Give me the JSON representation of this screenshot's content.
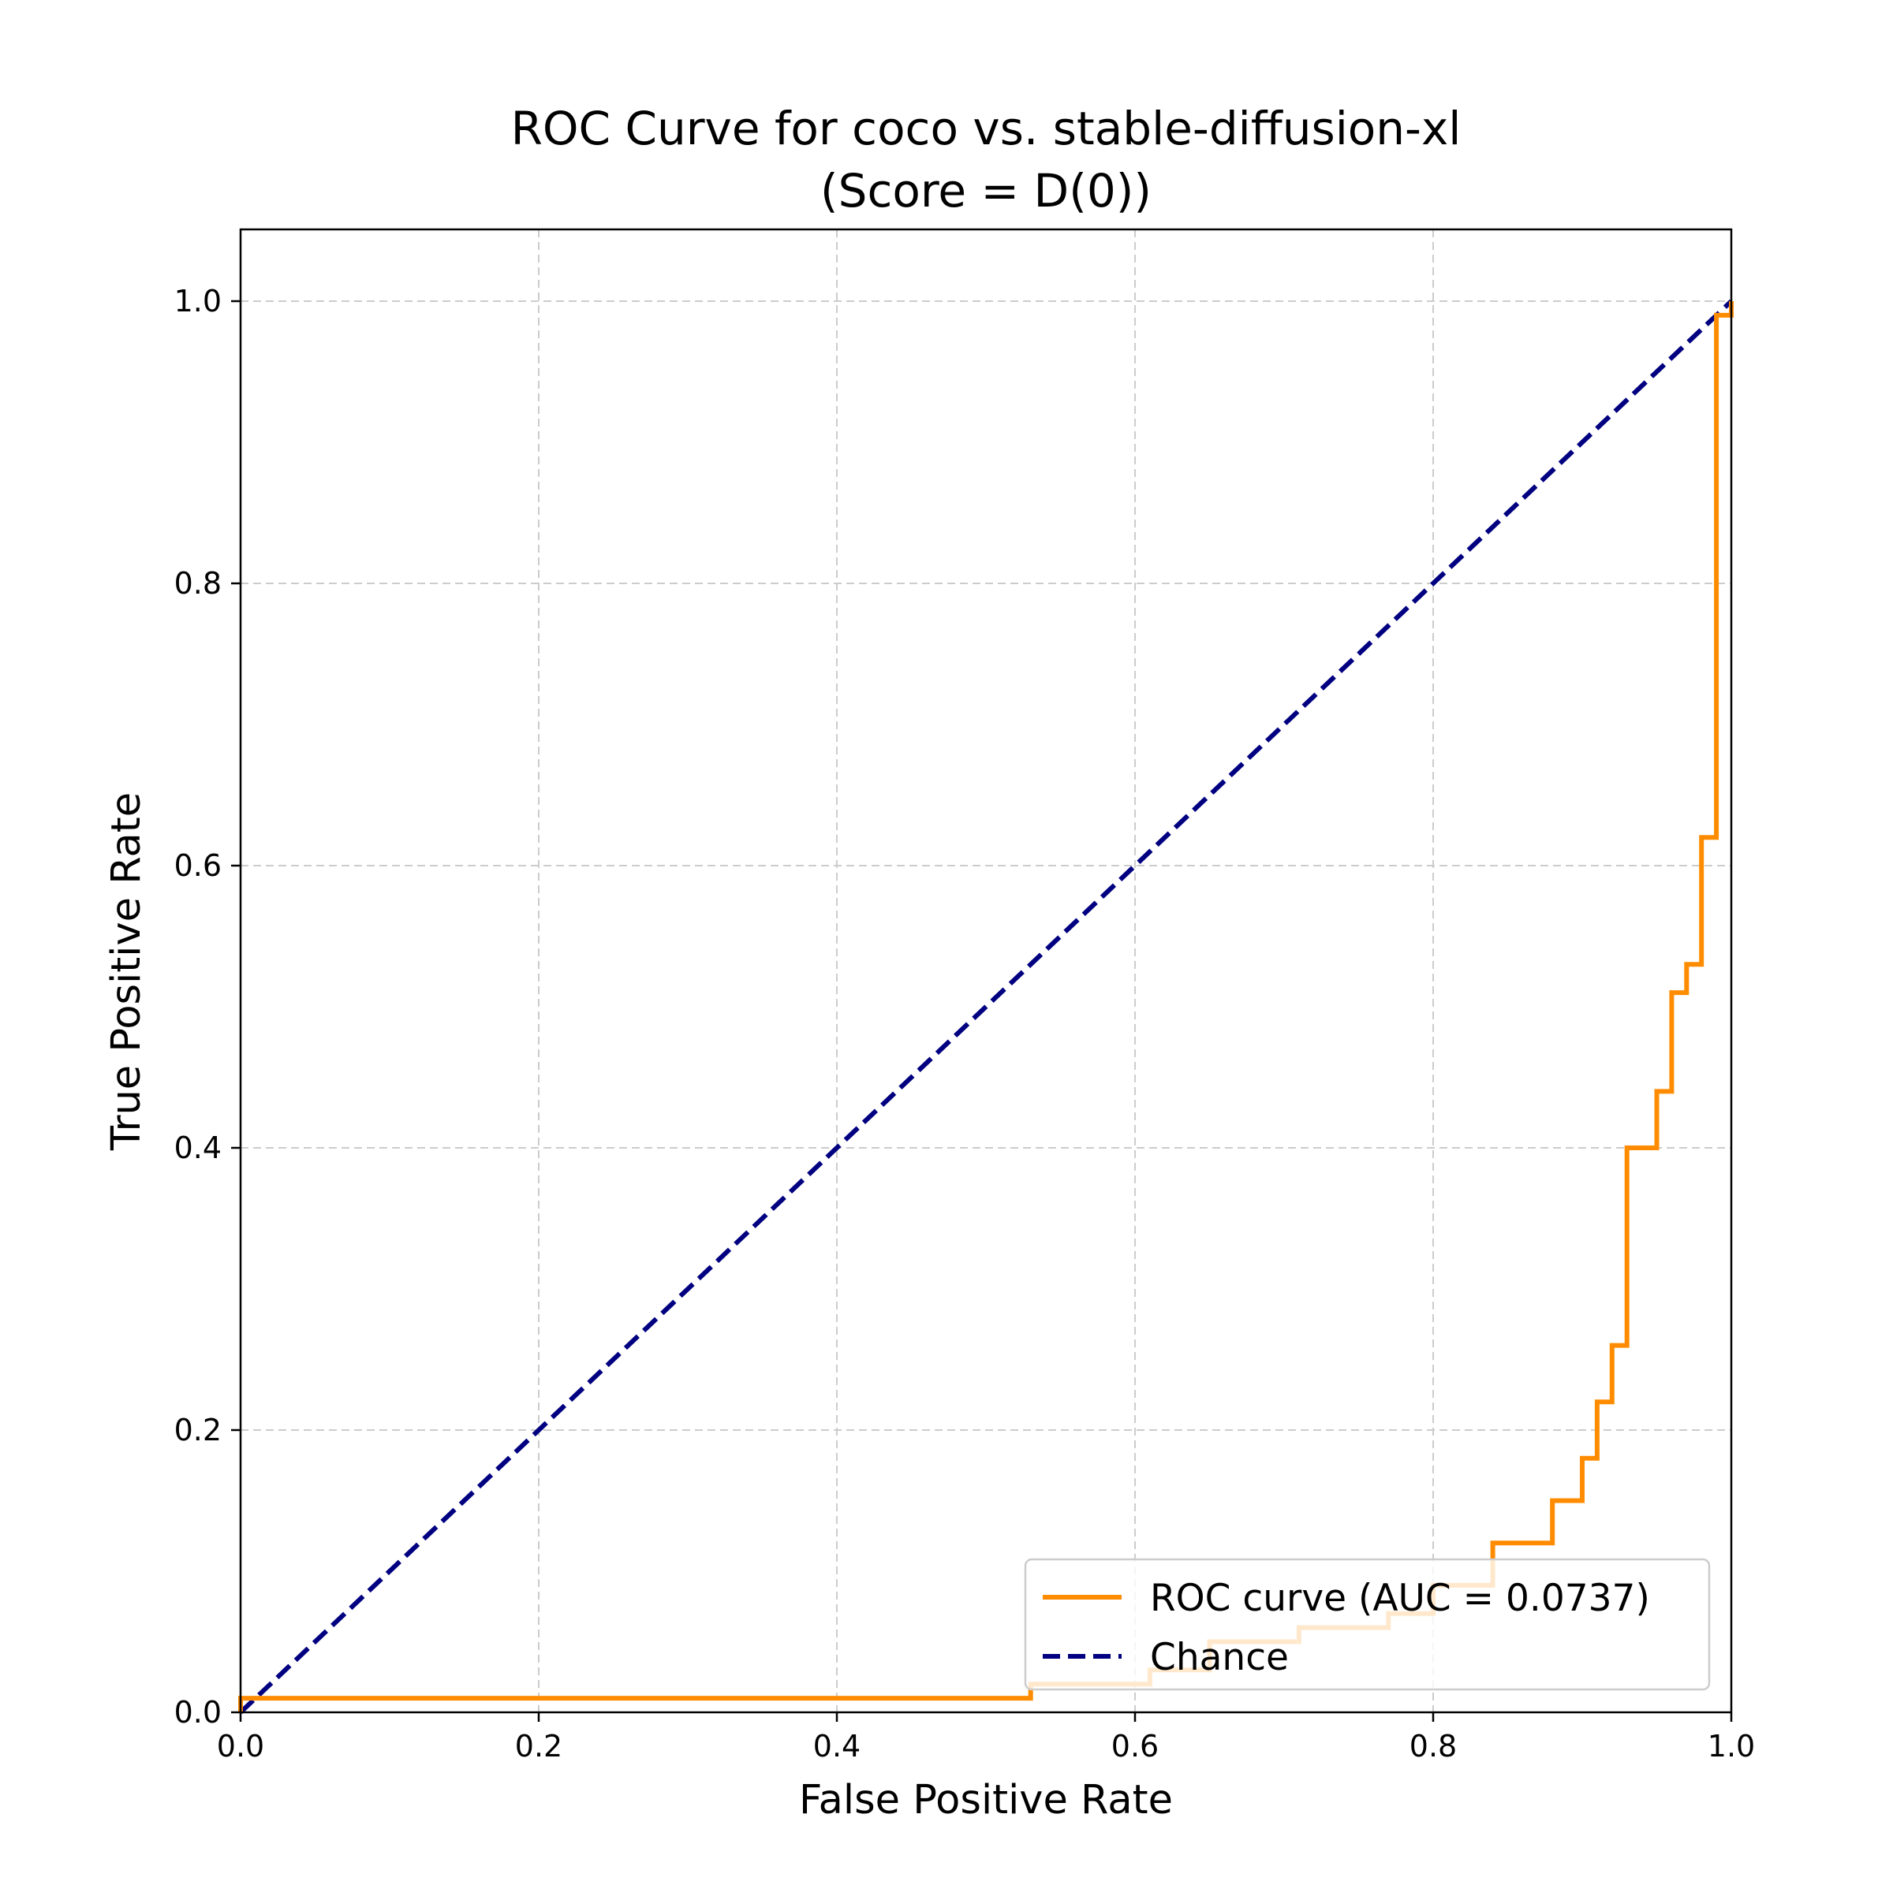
{
  "chart_data": {
    "type": "line",
    "title": [
      "ROC Curve for coco vs. stable-diffusion-xl",
      "(Score = D(0))"
    ],
    "xlabel": "False Positive Rate",
    "ylabel": "True Positive Rate",
    "xlim": [
      0.0,
      1.0
    ],
    "ylim": [
      0.0,
      1.0
    ],
    "xticks": [
      "0.0",
      "0.2",
      "0.4",
      "0.6",
      "0.8",
      "1.0"
    ],
    "yticks": [
      "0.0",
      "0.2",
      "0.4",
      "0.6",
      "0.8",
      "1.0"
    ],
    "grid": true,
    "legend_position": "lower right",
    "series": [
      {
        "name": "ROC curve (AUC = 0.0737)",
        "color": "#ff8c00",
        "style": "solid-step",
        "points": [
          [
            0.0,
            0.0
          ],
          [
            0.0,
            0.01
          ],
          [
            0.53,
            0.01
          ],
          [
            0.53,
            0.02
          ],
          [
            0.61,
            0.02
          ],
          [
            0.61,
            0.03
          ],
          [
            0.65,
            0.03
          ],
          [
            0.65,
            0.05
          ],
          [
            0.71,
            0.05
          ],
          [
            0.71,
            0.06
          ],
          [
            0.77,
            0.06
          ],
          [
            0.77,
            0.07
          ],
          [
            0.8,
            0.07
          ],
          [
            0.8,
            0.09
          ],
          [
            0.84,
            0.09
          ],
          [
            0.84,
            0.12
          ],
          [
            0.88,
            0.12
          ],
          [
            0.88,
            0.15
          ],
          [
            0.9,
            0.15
          ],
          [
            0.9,
            0.18
          ],
          [
            0.91,
            0.18
          ],
          [
            0.91,
            0.22
          ],
          [
            0.92,
            0.22
          ],
          [
            0.92,
            0.26
          ],
          [
            0.93,
            0.26
          ],
          [
            0.93,
            0.4
          ],
          [
            0.95,
            0.4
          ],
          [
            0.95,
            0.44
          ],
          [
            0.96,
            0.44
          ],
          [
            0.96,
            0.51
          ],
          [
            0.97,
            0.51
          ],
          [
            0.97,
            0.53
          ],
          [
            0.98,
            0.53
          ],
          [
            0.98,
            0.62
          ],
          [
            0.99,
            0.62
          ],
          [
            0.99,
            0.99
          ],
          [
            1.0,
            0.99
          ],
          [
            1.0,
            1.0
          ]
        ]
      },
      {
        "name": "Chance",
        "color": "#000080",
        "style": "dashed",
        "points": [
          [
            0.0,
            0.0
          ],
          [
            1.0,
            1.0
          ]
        ]
      }
    ]
  }
}
